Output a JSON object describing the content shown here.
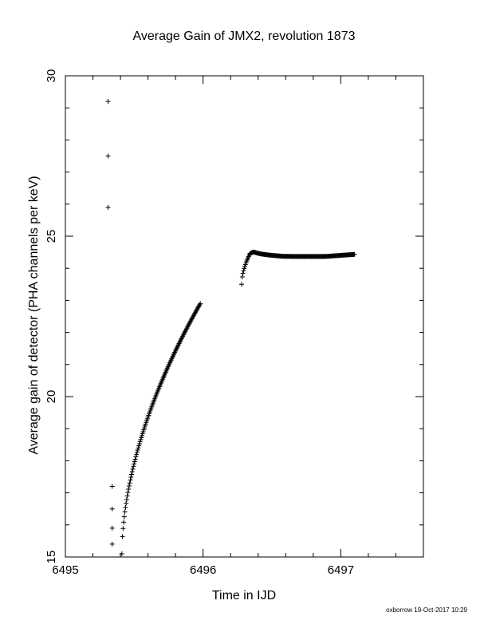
{
  "chart_data": {
    "type": "scatter",
    "title": "Average Gain of JMX2, revolution 1873",
    "xlabel": "Time in IJD",
    "ylabel": "Average gain of detector (PHA channels per keV)",
    "xlim": [
      6495,
      6497.6
    ],
    "ylim": [
      15,
      30
    ],
    "xticks": [
      6495,
      6496,
      6497
    ],
    "xtick_labels": [
      "6495",
      "6496",
      "6497"
    ],
    "yticks": [
      15,
      20,
      25,
      30
    ],
    "ytick_labels": [
      "15",
      "20",
      "25",
      "30"
    ],
    "grid": false,
    "marker": "plus",
    "segments": [
      {
        "points": [
          [
            6495.31,
            29.2
          ],
          [
            6495.31,
            27.5
          ],
          [
            6495.31,
            25.9
          ]
        ]
      },
      {
        "points": [
          [
            6495.34,
            17.2
          ],
          [
            6495.34,
            16.5
          ],
          [
            6495.34,
            15.9
          ],
          [
            6495.34,
            15.4
          ]
        ]
      },
      {
        "x_start": 6495.41,
        "x_end": 6495.98,
        "y_start": 15.1,
        "y_end": 22.9,
        "n": 130,
        "shape": "sqrt"
      },
      {
        "x_start": 6496.28,
        "x_end": 6496.34,
        "y_start": 23.5,
        "y_end": 24.45,
        "n": 14,
        "shape": "sqrt"
      },
      {
        "points_fn": "plateau",
        "x_start": 6496.34,
        "x_end": 6497.1,
        "n": 150
      }
    ]
  },
  "footer": {
    "stamp": "oxborrow 19-Oct-2017 10:29"
  }
}
